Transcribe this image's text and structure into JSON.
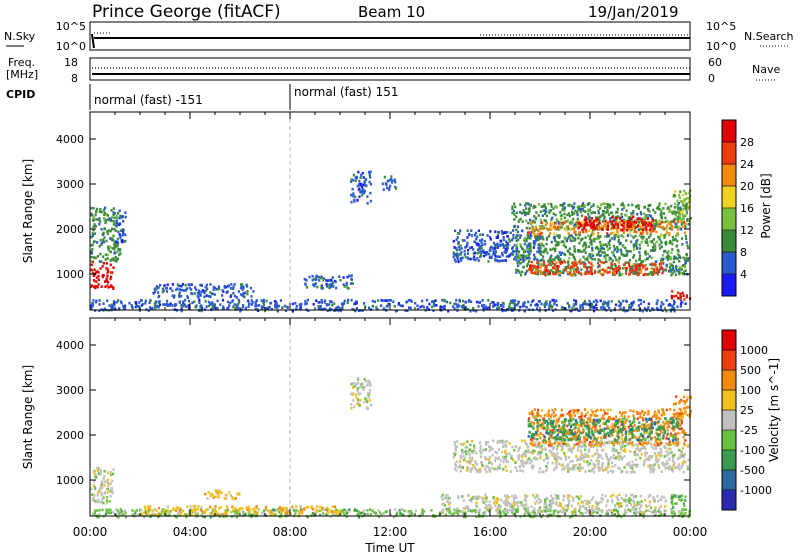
{
  "header": {
    "station": "Prince George (fitACF)",
    "beam": "Beam 10",
    "date": "19/Jan/2019"
  },
  "top_panels": {
    "nsky_label": "N.Sky",
    "nsky_ticks": [
      "10^5",
      "10^0"
    ],
    "nsearch_label": "N.Search",
    "nsearch_ticks": [
      "10^5",
      "10^0"
    ],
    "freq_label": "Freq.",
    "freq_unit": "[MHz]",
    "freq_ticks": [
      "18",
      "8"
    ],
    "nave_label": "Nave",
    "nave_ticks": [
      "60",
      "0"
    ],
    "cpid_label": "CPID",
    "cpid_segments": [
      "normal (fast) -151",
      "normal (fast) 151"
    ]
  },
  "chart_data": [
    {
      "type": "heatmap",
      "name": "power",
      "ylabel": "Slant Range [km]",
      "yticks": [
        1000,
        2000,
        3000,
        4000
      ],
      "ylim": [
        200,
        4600
      ],
      "xlim": [
        0,
        24
      ],
      "colorbar": {
        "label": "Power [dB]",
        "ticks": [
          "4",
          "8",
          "12",
          "16",
          "20",
          "24",
          "28"
        ],
        "colors": [
          "#1a1aff",
          "#2a5ad0",
          "#3a8a3a",
          "#7ac040",
          "#f0d020",
          "#f08a10",
          "#f03a10",
          "#e00000"
        ]
      },
      "regions": [
        {
          "t0": 0.0,
          "t1": 0.9,
          "r0": 700,
          "r1": 1300,
          "level": 7
        },
        {
          "t0": 0.0,
          "t1": 1.2,
          "r0": 1300,
          "r1": 2500,
          "level": 2
        },
        {
          "t0": 1.0,
          "t1": 1.4,
          "r0": 1700,
          "r1": 2400,
          "level": 1
        },
        {
          "t0": 0.0,
          "t1": 23.8,
          "r0": 200,
          "r1": 450,
          "level": 1
        },
        {
          "t0": 2.5,
          "t1": 6.5,
          "r0": 500,
          "r1": 800,
          "level": 1
        },
        {
          "t0": 8.5,
          "t1": 10.5,
          "r0": 700,
          "r1": 1000,
          "level": 1
        },
        {
          "t0": 10.4,
          "t1": 11.2,
          "r0": 2600,
          "r1": 3300,
          "level": 1
        },
        {
          "t0": 11.6,
          "t1": 12.2,
          "r0": 2900,
          "r1": 3200,
          "level": 1
        },
        {
          "t0": 14.5,
          "t1": 18.0,
          "r0": 1300,
          "r1": 2000,
          "level": 1
        },
        {
          "t0": 16.8,
          "t1": 23.9,
          "r0": 2000,
          "r1": 2600,
          "level": 2
        },
        {
          "t0": 17.5,
          "t1": 23.8,
          "r0": 1900,
          "r1": 2200,
          "level": 5
        },
        {
          "t0": 19.5,
          "t1": 22.5,
          "r0": 2000,
          "r1": 2300,
          "level": 7
        },
        {
          "t0": 17.0,
          "t1": 23.9,
          "r0": 1500,
          "r1": 1900,
          "level": 2
        },
        {
          "t0": 17.0,
          "t1": 23.9,
          "r0": 1000,
          "r1": 1500,
          "level": 2
        },
        {
          "t0": 17.5,
          "t1": 23.0,
          "r0": 1000,
          "r1": 1300,
          "level": 6
        },
        {
          "t0": 23.2,
          "t1": 24.0,
          "r0": 450,
          "r1": 650,
          "level": 7
        },
        {
          "t0": 23.3,
          "t1": 24.0,
          "r0": 2200,
          "r1": 2900,
          "level": 3
        }
      ]
    },
    {
      "type": "heatmap",
      "name": "velocity",
      "ylabel": "Slant Range [km]",
      "yticks": [
        1000,
        2000,
        3000,
        4000
      ],
      "ylim": [
        200,
        4600
      ],
      "xlim": [
        0,
        24
      ],
      "xticks": [
        "00:00",
        "04:00",
        "08:00",
        "12:00",
        "16:00",
        "20:00",
        "00:00"
      ],
      "xlabel": "Time UT",
      "colorbar": {
        "label": "Velocity [m s^-1]",
        "ticks": [
          "1000",
          "500",
          "100",
          "25",
          "-25",
          "-100",
          "-500",
          "-1000"
        ],
        "colors": [
          "#2a2ab0",
          "#2a6aa0",
          "#3a9a50",
          "#6ac040",
          "#c0c0c0",
          "#f0c020",
          "#f08a10",
          "#f04010",
          "#e00000"
        ]
      },
      "regions": [
        {
          "t0": 0.0,
          "t1": 0.9,
          "r0": 500,
          "r1": 1300,
          "level": 4
        },
        {
          "t0": 0.0,
          "t1": 23.8,
          "r0": 200,
          "r1": 380,
          "level": 3
        },
        {
          "t0": 2.0,
          "t1": 10.0,
          "r0": 250,
          "r1": 450,
          "level": 5
        },
        {
          "t0": 4.5,
          "t1": 6.0,
          "r0": 600,
          "r1": 800,
          "level": 5
        },
        {
          "t0": 10.4,
          "t1": 11.2,
          "r0": 2600,
          "r1": 3300,
          "level": 4
        },
        {
          "t0": 14.5,
          "t1": 23.9,
          "r0": 1200,
          "r1": 1900,
          "level": 4
        },
        {
          "t0": 14.0,
          "t1": 23.0,
          "r0": 300,
          "r1": 700,
          "level": 4
        },
        {
          "t0": 17.5,
          "t1": 23.8,
          "r0": 1800,
          "r1": 2600,
          "level": 6
        },
        {
          "t0": 17.5,
          "t1": 23.5,
          "r0": 1900,
          "r1": 2400,
          "level": 2
        },
        {
          "t0": 23.2,
          "t1": 24.0,
          "r0": 200,
          "r1": 700,
          "level": 3
        },
        {
          "t0": 23.3,
          "t1": 24.0,
          "r0": 2400,
          "r1": 2900,
          "level": 6
        }
      ]
    }
  ]
}
